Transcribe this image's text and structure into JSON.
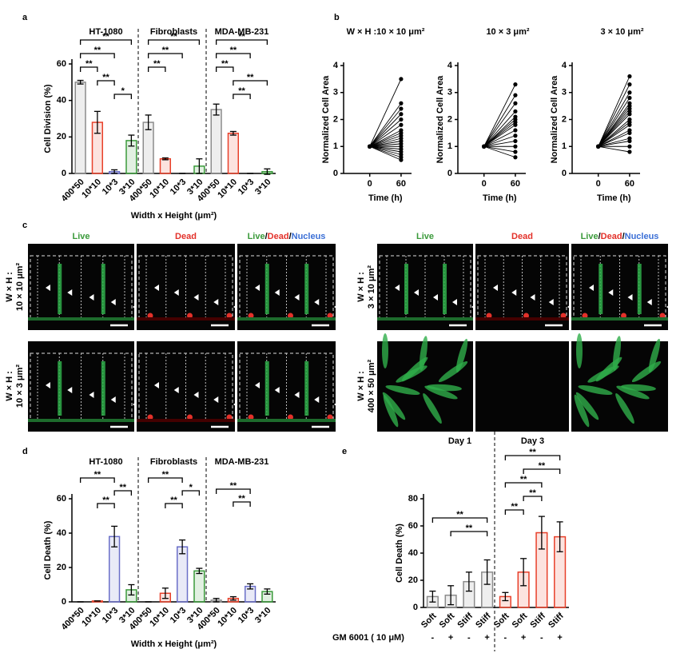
{
  "figure": {
    "panels": [
      "a",
      "b",
      "c",
      "d",
      "e"
    ]
  },
  "chart_data": [
    {
      "type": "bar",
      "ylabel": "Cell Division (%)",
      "xlabel": "Width x Height (μm²)",
      "categories": [
        "400*50",
        "10*10",
        "10*3",
        "3*10"
      ],
      "colors": [
        "#8c8c8c",
        "#e8402a",
        "#6a6fc8",
        "#3a9a3a"
      ],
      "ylim": [
        0,
        60
      ],
      "yticks": [
        0,
        20,
        40,
        60
      ],
      "groups": [
        {
          "name": "HT-1080",
          "values": [
            50,
            28,
            1,
            18
          ],
          "errors": [
            1,
            6,
            1,
            3
          ],
          "brackets": [
            {
              "label": "**",
              "from": 0,
              "to": 3
            },
            {
              "label": "**",
              "from": 0,
              "to": 2
            },
            {
              "label": "**",
              "from": 0,
              "to": 1
            },
            {
              "label": "**",
              "from": 1,
              "to": 2
            },
            {
              "label": "*",
              "from": 2,
              "to": 3
            }
          ]
        },
        {
          "name": "Fibroblasts",
          "values": [
            28,
            8,
            0,
            4
          ],
          "errors": [
            4,
            0.5,
            0,
            4
          ],
          "brackets": [
            {
              "label": "**",
              "from": 0,
              "to": 3
            },
            {
              "label": "**",
              "from": 0,
              "to": 2
            },
            {
              "label": "**",
              "from": 0,
              "to": 1
            }
          ]
        },
        {
          "name": "MDA-MB-231",
          "values": [
            35,
            22,
            0,
            1
          ],
          "errors": [
            3,
            1,
            0,
            1.5
          ],
          "brackets": [
            {
              "label": "**",
              "from": 0,
              "to": 3
            },
            {
              "label": "**",
              "from": 0,
              "to": 2
            },
            {
              "label": "**",
              "from": 0,
              "to": 1
            },
            {
              "label": "**",
              "from": 1,
              "to": 3
            },
            {
              "label": "**",
              "from": 1,
              "to": 2
            }
          ]
        }
      ]
    },
    {
      "type": "line",
      "title": "W × H :10 × 10 μm²",
      "ylabel": "Normalized Cell Area",
      "xlabel": "Time (h)",
      "color": "#000000",
      "x": [
        0,
        60
      ],
      "xlim": [
        -50,
        80
      ],
      "xticks": [
        0,
        60
      ],
      "ylim": [
        0,
        4
      ],
      "yticks": [
        0,
        1,
        2,
        3,
        4
      ],
      "series": [
        {
          "values": [
            1,
            3.5
          ]
        },
        {
          "values": [
            1,
            2.6
          ]
        },
        {
          "values": [
            1,
            2.4
          ]
        },
        {
          "values": [
            1,
            2.2
          ]
        },
        {
          "values": [
            1,
            2.0
          ]
        },
        {
          "values": [
            1,
            1.8
          ]
        },
        {
          "values": [
            1,
            1.6
          ]
        },
        {
          "values": [
            1,
            1.5
          ]
        },
        {
          "values": [
            1,
            1.4
          ]
        },
        {
          "values": [
            1,
            1.3
          ]
        },
        {
          "values": [
            1,
            1.2
          ]
        },
        {
          "values": [
            1,
            1.1
          ]
        },
        {
          "values": [
            1,
            1.0
          ]
        },
        {
          "values": [
            1,
            0.9
          ]
        },
        {
          "values": [
            1,
            0.8
          ]
        },
        {
          "values": [
            1,
            0.7
          ]
        },
        {
          "values": [
            1,
            0.6
          ]
        },
        {
          "values": [
            1,
            0.5
          ]
        }
      ]
    },
    {
      "type": "line",
      "title": "10 × 3 μm²",
      "ylabel": "Normalized Cell Area",
      "xlabel": "Time (h)",
      "color": "#000000",
      "x": [
        0,
        60
      ],
      "xlim": [
        -50,
        80
      ],
      "xticks": [
        0,
        60
      ],
      "ylim": [
        0,
        4
      ],
      "yticks": [
        0,
        1,
        2,
        3,
        4
      ],
      "series": [
        {
          "values": [
            1,
            3.3
          ]
        },
        {
          "values": [
            1,
            2.9
          ]
        },
        {
          "values": [
            1,
            2.6
          ]
        },
        {
          "values": [
            1,
            2.3
          ]
        },
        {
          "values": [
            1,
            2.1
          ]
        },
        {
          "values": [
            1,
            2.0
          ]
        },
        {
          "values": [
            1,
            1.9
          ]
        },
        {
          "values": [
            1,
            1.8
          ]
        },
        {
          "values": [
            1,
            1.6
          ]
        },
        {
          "values": [
            1,
            1.4
          ]
        },
        {
          "values": [
            1,
            1.2
          ]
        },
        {
          "values": [
            1,
            1.0
          ]
        },
        {
          "values": [
            1,
            0.8
          ]
        },
        {
          "values": [
            1,
            0.6
          ]
        }
      ]
    },
    {
      "type": "line",
      "title": "3 × 10 μm²",
      "ylabel": "Normalized Cell Area",
      "xlabel": "Time (h)",
      "color": "#000000",
      "x": [
        0,
        60
      ],
      "xlim": [
        -50,
        80
      ],
      "xticks": [
        0,
        60
      ],
      "ylim": [
        0,
        4
      ],
      "yticks": [
        0,
        1,
        2,
        3,
        4
      ],
      "series": [
        {
          "values": [
            1,
            3.6
          ]
        },
        {
          "values": [
            1,
            3.3
          ]
        },
        {
          "values": [
            1,
            3.0
          ]
        },
        {
          "values": [
            1,
            2.8
          ]
        },
        {
          "values": [
            1,
            2.6
          ]
        },
        {
          "values": [
            1,
            2.5
          ]
        },
        {
          "values": [
            1,
            2.4
          ]
        },
        {
          "values": [
            1,
            2.3
          ]
        },
        {
          "values": [
            1,
            2.2
          ]
        },
        {
          "values": [
            1,
            2.0
          ]
        },
        {
          "values": [
            1,
            1.9
          ]
        },
        {
          "values": [
            1,
            1.8
          ]
        },
        {
          "values": [
            1,
            1.6
          ]
        },
        {
          "values": [
            1,
            1.5
          ]
        },
        {
          "values": [
            1,
            1.3
          ]
        },
        {
          "values": [
            1,
            1.2
          ]
        },
        {
          "values": [
            1,
            1.0
          ]
        },
        {
          "values": [
            1,
            0.8
          ]
        }
      ]
    },
    {
      "type": "bar",
      "ylabel": "Cell Death (%)",
      "xlabel": "Width x Height (μm²)",
      "categories": [
        "400*50",
        "10*10",
        "10*3",
        "3*10"
      ],
      "colors": [
        "#8c8c8c",
        "#e8402a",
        "#6a6fc8",
        "#3a9a3a"
      ],
      "ylim": [
        0,
        60
      ],
      "yticks": [
        0,
        20,
        40,
        60
      ],
      "groups": [
        {
          "name": "HT-1080",
          "values": [
            0,
            0.5,
            38,
            7
          ],
          "errors": [
            0,
            0,
            6,
            3
          ],
          "brackets": [
            {
              "label": "**",
              "from": 0,
              "to": 2
            },
            {
              "label": "**",
              "from": 2,
              "to": 3
            },
            {
              "label": "**",
              "from": 1,
              "to": 2
            }
          ]
        },
        {
          "name": "Fibroblasts",
          "values": [
            0,
            5,
            32,
            18
          ],
          "errors": [
            0,
            3,
            4,
            1.5
          ],
          "brackets": [
            {
              "label": "**",
              "from": 0,
              "to": 2
            },
            {
              "label": "*",
              "from": 2,
              "to": 3
            },
            {
              "label": "**",
              "from": 1,
              "to": 2
            }
          ]
        },
        {
          "name": "MDA-MB-231",
          "values": [
            1,
            2,
            9,
            6
          ],
          "errors": [
            1,
            1,
            1.5,
            1.5
          ],
          "brackets": [
            {
              "label": "**",
              "from": 0,
              "to": 2
            },
            {
              "label": "**",
              "from": 1,
              "to": 2
            }
          ]
        }
      ]
    },
    {
      "type": "bar",
      "ylabel": "Cell Death (%)",
      "categories": [
        "Soft",
        "Soft",
        "Stiff",
        "Stiff"
      ],
      "treatment_label": "GM 6001 ( 10 μM)",
      "treatment": [
        "-",
        "+",
        "-",
        "+"
      ],
      "ylim": [
        0,
        80
      ],
      "yticks": [
        0,
        20,
        40,
        60,
        80
      ],
      "groups": [
        {
          "name": "Day 1",
          "color": "#8c8c8c",
          "values": [
            8,
            9,
            19,
            26
          ],
          "errors": [
            4,
            7,
            7,
            9
          ],
          "brackets": [
            {
              "label": "**",
              "from": 0,
              "to": 3
            },
            {
              "label": "**",
              "from": 1,
              "to": 3
            }
          ]
        },
        {
          "name": "Day 3",
          "color": "#e8402a",
          "values": [
            8,
            26,
            55,
            52
          ],
          "errors": [
            3,
            10,
            12,
            11
          ],
          "brackets": [
            {
              "label": "**",
              "from": 0,
              "to": 3
            },
            {
              "label": "**",
              "from": 1,
              "to": 3
            },
            {
              "label": "**",
              "from": 0,
              "to": 2
            },
            {
              "label": "**",
              "from": 1,
              "to": 2
            },
            {
              "label": "**",
              "from": 0,
              "to": 1
            }
          ]
        }
      ]
    }
  ],
  "panel_c": {
    "live": "Live",
    "dead": "Dead",
    "merged": [
      "Live",
      "/",
      "Dead",
      "/",
      "Nucleus"
    ],
    "rows": [
      [
        "W × H :",
        "10 × 10 μm²"
      ],
      [
        "W × H :",
        "10 × 3 μm²"
      ],
      [
        "W × H :",
        "3 × 10 μm²"
      ],
      [
        "W × H :",
        "400 × 50 μm²"
      ]
    ]
  }
}
